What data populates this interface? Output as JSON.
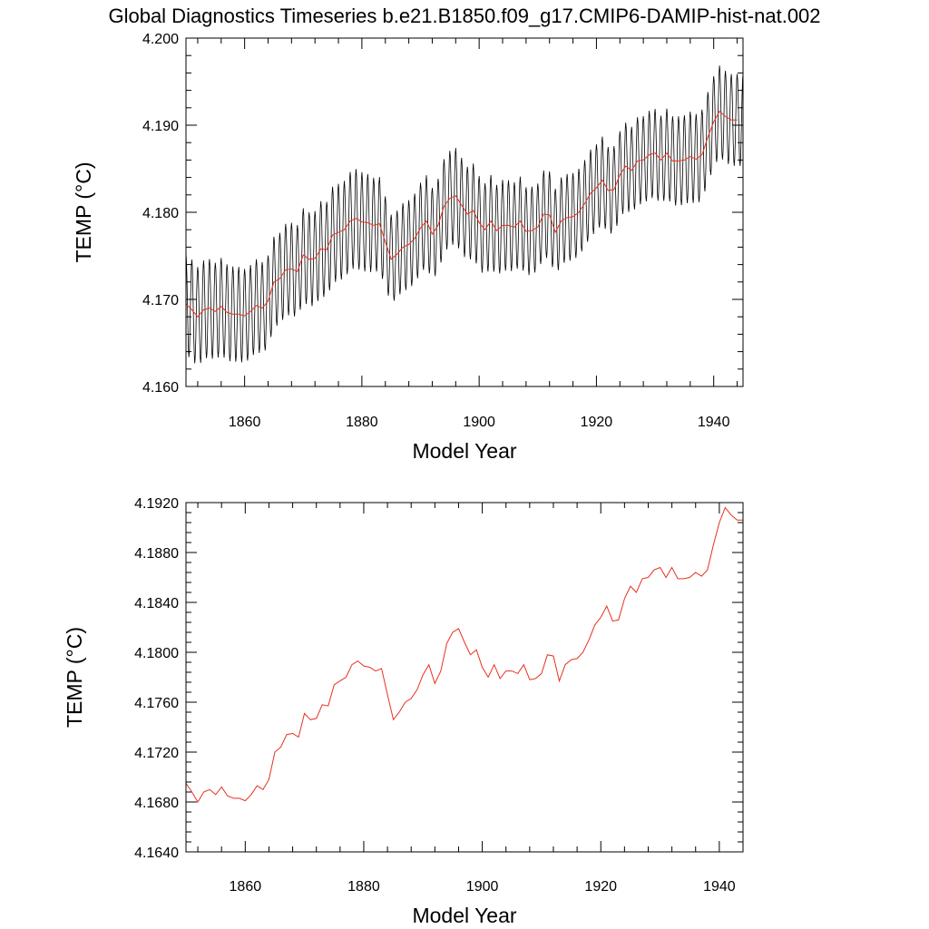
{
  "figure_title": "Global Diagnostics Timeseries b.e21.B1850.f09_g17.CMIP6-DAMIP-hist-nat.002",
  "colors": {
    "monthly": "#000000",
    "annual": "#e8301f"
  },
  "chart_data": [
    {
      "type": "line",
      "xlabel": "Model Year",
      "ylabel": "TEMP (°C)",
      "xlim": [
        1850,
        1945
      ],
      "ylim": [
        4.16,
        4.2
      ],
      "xticks": [
        1860,
        1880,
        1900,
        1920,
        1940
      ],
      "yticks": [
        "4.160",
        "4.170",
        "4.180",
        "4.190",
        "4.200"
      ],
      "series": [
        {
          "style": "monthly",
          "seasonal_cycle": {
            "amplitude_by_year": [
              [
                1850,
                0.0058
              ],
              [
                1865,
                0.0052
              ],
              [
                1880,
                0.0057
              ],
              [
                1886,
                0.005
              ],
              [
                1896,
                0.0055
              ],
              [
                1910,
                0.005
              ],
              [
                1925,
                0.005
              ],
              [
                1945,
                0.0053
              ]
            ],
            "phase_peak_month": 0
          },
          "values": []
        },
        {
          "style": "annual",
          "values_ref": "annual_mean"
        }
      ]
    },
    {
      "type": "line",
      "xlabel": "Model Year",
      "ylabel": "TEMP (°C)",
      "xlim": [
        1850,
        1944
      ],
      "ylim": [
        4.164,
        4.192
      ],
      "xticks": [
        1860,
        1880,
        1900,
        1920,
        1940
      ],
      "yticks": [
        "4.1640",
        "4.1680",
        "4.1720",
        "4.1760",
        "4.1800",
        "4.1840",
        "4.1880",
        "4.1920"
      ],
      "series": [
        {
          "style": "annual",
          "values_ref": "annual_mean"
        }
      ]
    }
  ],
  "annual_mean": {
    "x": [
      1850,
      1851,
      1852,
      1853,
      1854,
      1855,
      1856,
      1857,
      1858,
      1859,
      1860,
      1861,
      1862,
      1863,
      1864,
      1865,
      1866,
      1867,
      1868,
      1869,
      1870,
      1871,
      1872,
      1873,
      1874,
      1875,
      1876,
      1877,
      1878,
      1879,
      1880,
      1881,
      1882,
      1883,
      1884,
      1885,
      1886,
      1887,
      1888,
      1889,
      1890,
      1891,
      1892,
      1893,
      1894,
      1895,
      1896,
      1897,
      1898,
      1899,
      1900,
      1901,
      1902,
      1903,
      1904,
      1905,
      1906,
      1907,
      1908,
      1909,
      1910,
      1911,
      1912,
      1913,
      1914,
      1915,
      1916,
      1917,
      1918,
      1919,
      1920,
      1921,
      1922,
      1923,
      1924,
      1925,
      1926,
      1927,
      1928,
      1929,
      1930,
      1931,
      1932,
      1933,
      1934,
      1935,
      1936,
      1937,
      1938,
      1939,
      1940,
      1941,
      1942,
      1943,
      1944
    ],
    "y": [
      4.1695,
      4.1688,
      4.168,
      4.1688,
      4.169,
      4.1686,
      4.1692,
      4.1685,
      4.1683,
      4.1683,
      4.1681,
      4.1686,
      4.1693,
      4.169,
      4.1698,
      4.172,
      4.1724,
      4.1734,
      4.1735,
      4.1732,
      4.1751,
      4.1746,
      4.1747,
      4.1758,
      4.1757,
      4.1774,
      4.1777,
      4.178,
      4.179,
      4.1793,
      4.1789,
      4.1788,
      4.1785,
      4.1787,
      4.1766,
      4.1746,
      4.1752,
      4.176,
      4.1763,
      4.177,
      4.1782,
      4.179,
      4.1775,
      4.1785,
      4.1807,
      4.1816,
      4.1819,
      4.1808,
      4.1798,
      4.1802,
      4.1788,
      4.178,
      4.179,
      4.1779,
      4.1785,
      4.1785,
      4.1783,
      4.179,
      4.1778,
      4.1779,
      4.1783,
      4.1798,
      4.1797,
      4.1777,
      4.179,
      4.1794,
      4.1795,
      4.18,
      4.181,
      4.1822,
      4.1828,
      4.1837,
      4.1825,
      4.1826,
      4.1843,
      4.1853,
      4.1848,
      4.1859,
      4.186,
      4.1866,
      4.1868,
      4.186,
      4.1868,
      4.1859,
      4.1859,
      4.186,
      4.1864,
      4.1861,
      4.1866,
      4.1886,
      4.1904,
      4.1916,
      4.191,
      4.1906,
      4.1906
    ]
  }
}
